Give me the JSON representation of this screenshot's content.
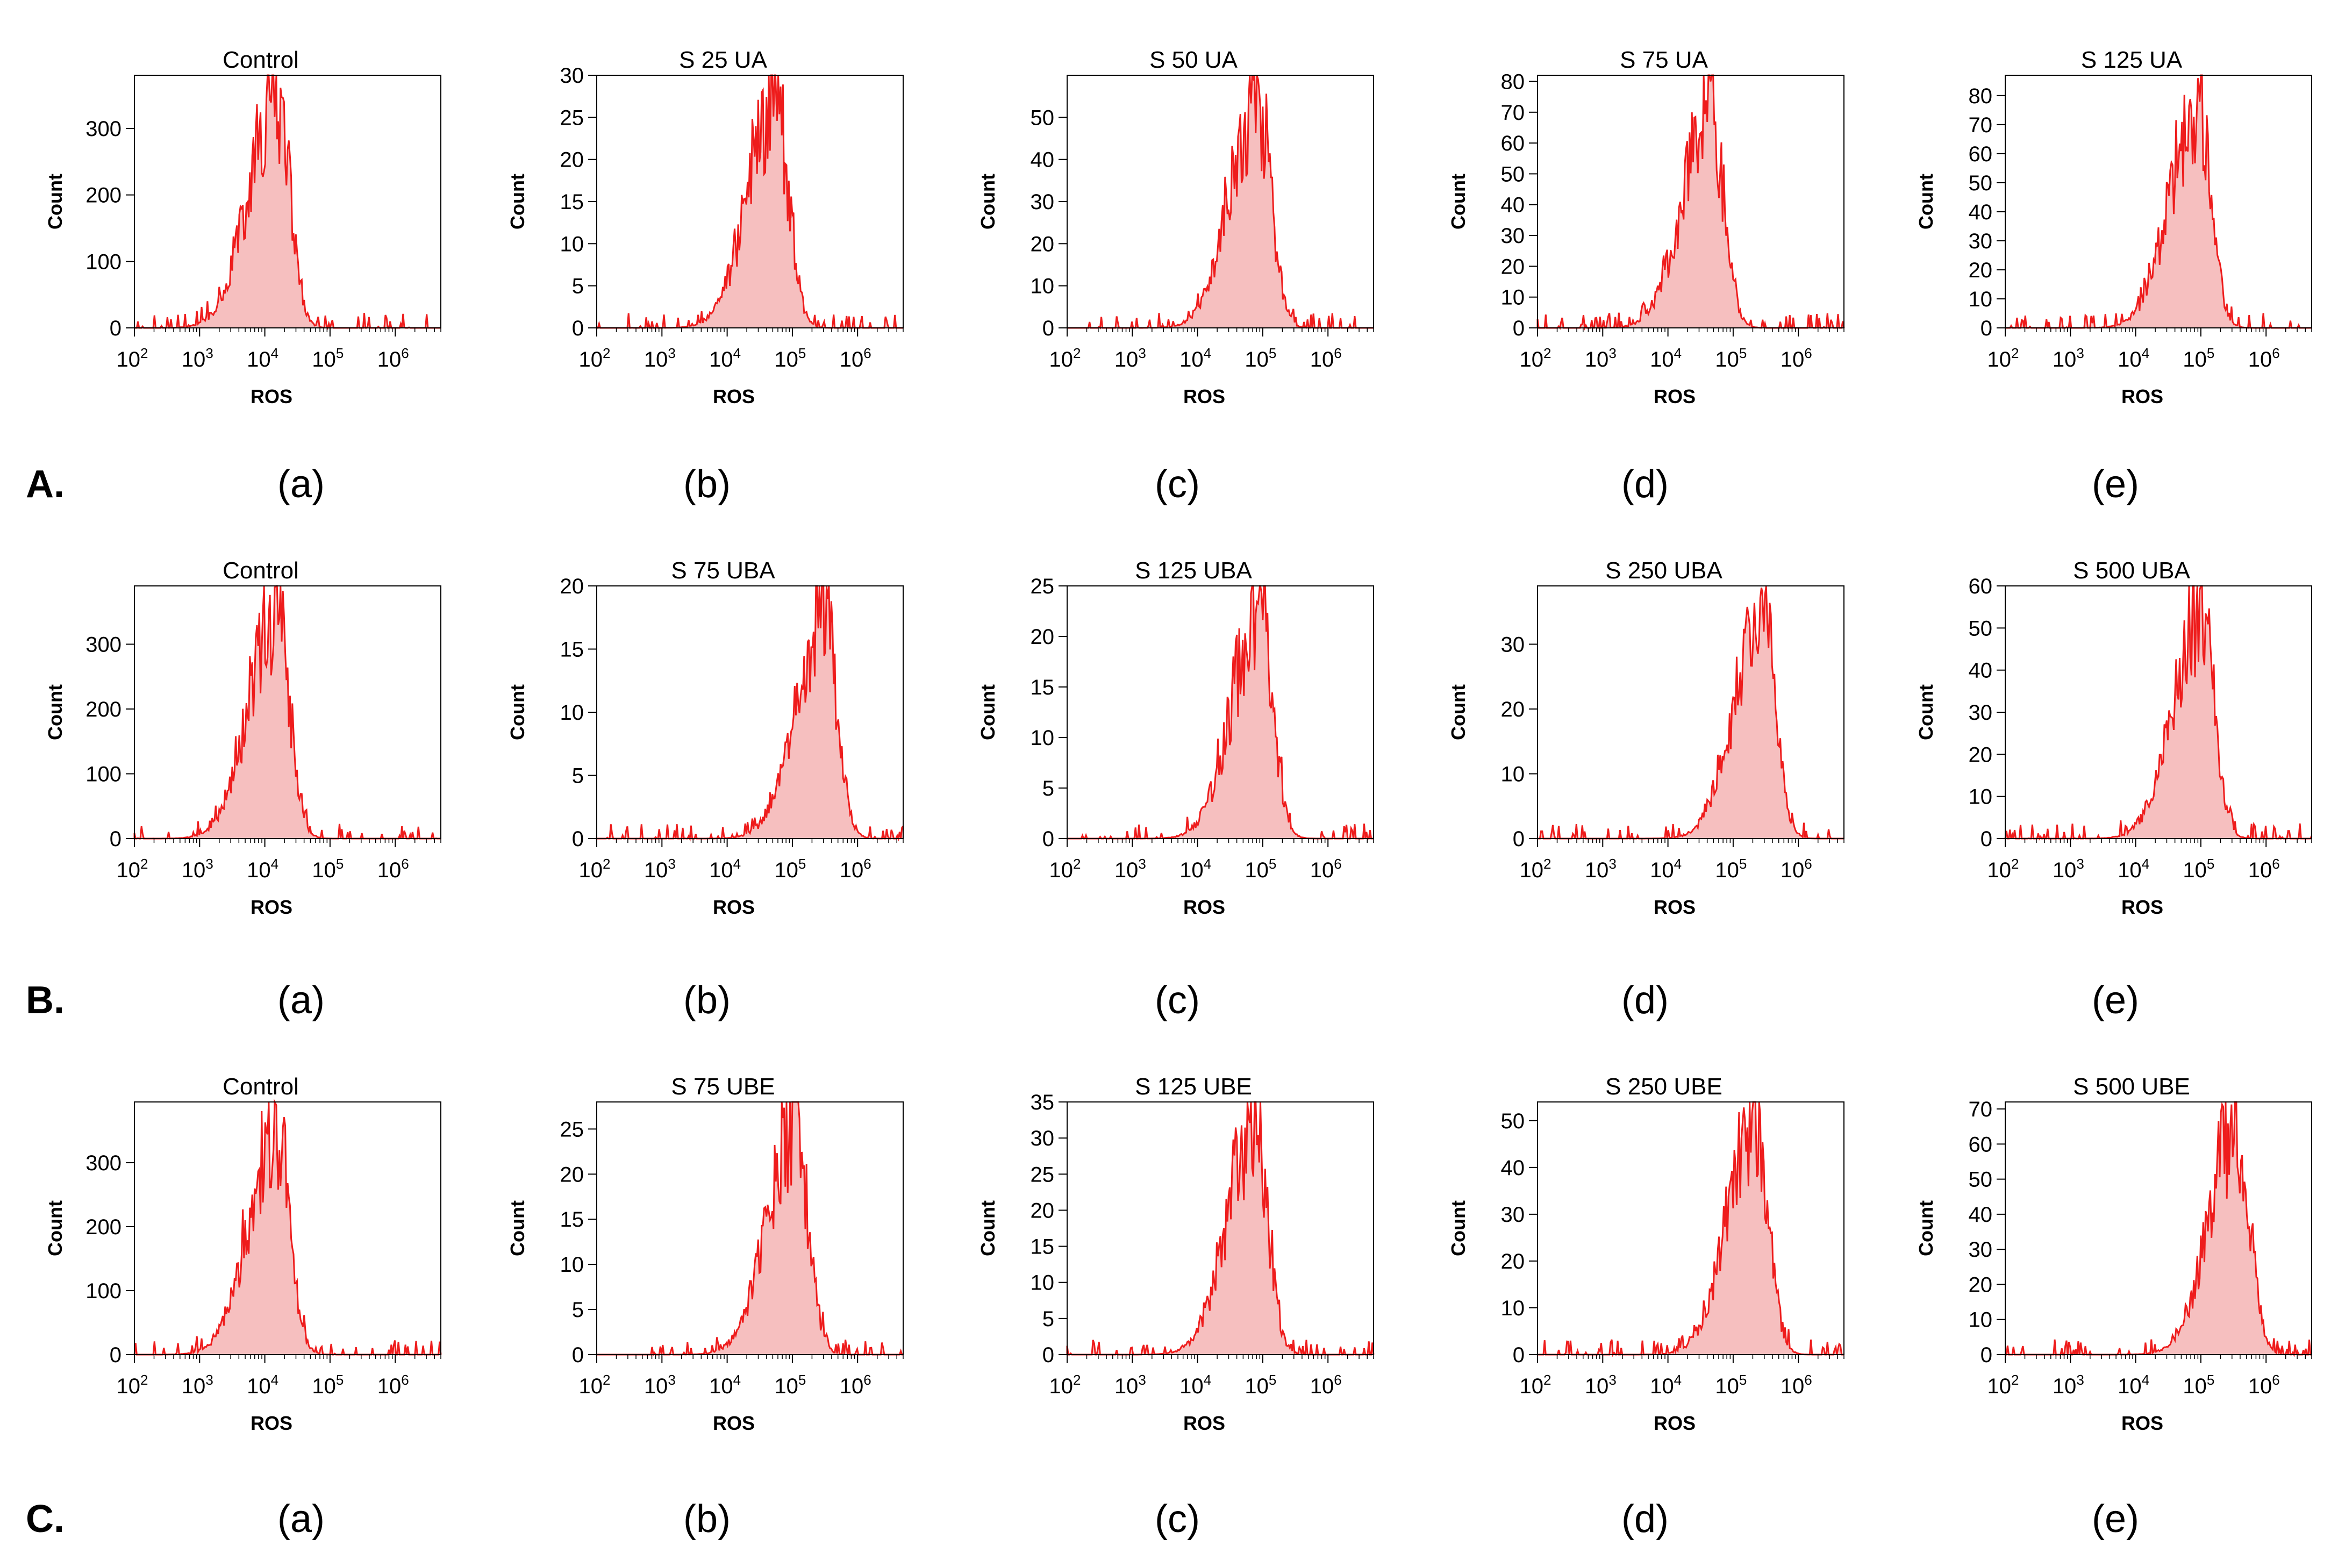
{
  "figure": {
    "x_tick_labels": [
      {
        "base": "10",
        "exp": "2"
      },
      {
        "base": "10",
        "exp": "3"
      },
      {
        "base": "10",
        "exp": "4"
      },
      {
        "base": "10",
        "exp": "5"
      },
      {
        "base": "10",
        "exp": "6"
      }
    ],
    "colors": {
      "line": "#ee1c1c",
      "fill": "#f6bfbf",
      "frame": "#000000"
    }
  },
  "rows": [
    {
      "label": "A.",
      "panel_labels": [
        "(a)",
        "(b)",
        "(c)",
        "(d)",
        "(e)"
      ]
    },
    {
      "label": "B.",
      "panel_labels": [
        "(a)",
        "(b)",
        "(c)",
        "(d)",
        "(e)"
      ]
    },
    {
      "label": "C.",
      "panel_labels": [
        "(a)",
        "(b)",
        "(c)",
        "(d)",
        "(e)"
      ]
    }
  ],
  "chart_data": [
    {
      "type": "area",
      "title": "Control",
      "xlabel": "ROS",
      "ylabel": "Count",
      "x_scale": "log10",
      "xlim": [
        100,
        5000000
      ],
      "ylim": [
        0,
        380
      ],
      "yticks": [
        0,
        100,
        200,
        300
      ],
      "peak_x": 15000,
      "peak_y": 390,
      "seed": 1
    },
    {
      "type": "area",
      "title": "S 25 UA",
      "xlabel": "ROS",
      "ylabel": "Count",
      "x_scale": "log10",
      "xlim": [
        100,
        5000000
      ],
      "ylim": [
        0,
        30
      ],
      "yticks": [
        0,
        5,
        10,
        15,
        20,
        25,
        30
      ],
      "peak_x": 55000,
      "peak_y": 30,
      "seed": 2
    },
    {
      "type": "area",
      "title": "S 50  UA",
      "xlabel": "ROS",
      "ylabel": "Count",
      "x_scale": "log10",
      "xlim": [
        100,
        5000000
      ],
      "ylim": [
        0,
        60
      ],
      "yticks": [
        0,
        10,
        20,
        30,
        40,
        50
      ],
      "peak_x": 85000,
      "peak_y": 59,
      "seed": 3
    },
    {
      "type": "area",
      "title": "S 75 UA",
      "xlabel": "ROS",
      "ylabel": "Count",
      "x_scale": "log10",
      "xlim": [
        100,
        5000000
      ],
      "ylim": [
        0,
        82
      ],
      "yticks": [
        0,
        10,
        20,
        30,
        40,
        50,
        60,
        70,
        80
      ],
      "peak_x": 45000,
      "peak_y": 80,
      "seed": 4
    },
    {
      "type": "area",
      "title": "S 125 UA",
      "xlabel": "ROS",
      "ylabel": "Count",
      "x_scale": "log10",
      "xlim": [
        100,
        5000000
      ],
      "ylim": [
        0,
        87
      ],
      "yticks": [
        0,
        10,
        20,
        30,
        40,
        50,
        60,
        70,
        80
      ],
      "peak_x": 90000,
      "peak_y": 86,
      "seed": 5
    },
    {
      "type": "area",
      "title": "Control",
      "xlabel": "ROS",
      "ylabel": "Count",
      "x_scale": "log10",
      "xlim": [
        100,
        5000000
      ],
      "ylim": [
        0,
        390
      ],
      "yticks": [
        0,
        100,
        200,
        300
      ],
      "peak_x": 15000,
      "peak_y": 390,
      "seed": 6
    },
    {
      "type": "area",
      "title": "S 75  UBA",
      "xlabel": "ROS",
      "ylabel": "Count",
      "x_scale": "log10",
      "xlim": [
        100,
        5000000
      ],
      "ylim": [
        0,
        20
      ],
      "yticks": [
        0,
        5,
        10,
        15,
        20
      ],
      "peak_x": 300000,
      "peak_y": 20,
      "seed": 7
    },
    {
      "type": "area",
      "title": "S 125  UBA",
      "xlabel": "ROS",
      "ylabel": "Count",
      "x_scale": "log10",
      "xlim": [
        100,
        5000000
      ],
      "ylim": [
        0,
        25
      ],
      "yticks": [
        0,
        5,
        10,
        15,
        20,
        25
      ],
      "peak_x": 90000,
      "peak_y": 25,
      "seed": 8
    },
    {
      "type": "area",
      "title": "S 250 UBA",
      "xlabel": "ROS",
      "ylabel": "Count",
      "x_scale": "log10",
      "xlim": [
        100,
        5000000
      ],
      "ylim": [
        0,
        39
      ],
      "yticks": [
        0,
        10,
        20,
        30
      ],
      "peak_x": 280000,
      "peak_y": 38,
      "seed": 9
    },
    {
      "type": "area",
      "title": "S 500 UBA",
      "xlabel": "ROS",
      "ylabel": "Count",
      "x_scale": "log10",
      "xlim": [
        100,
        5000000
      ],
      "ylim": [
        0,
        60
      ],
      "yticks": [
        0,
        10,
        20,
        30,
        40,
        50,
        60
      ],
      "peak_x": 100000,
      "peak_y": 60,
      "seed": 10
    },
    {
      "type": "area",
      "title": "Control",
      "xlabel": "ROS",
      "ylabel": "Count",
      "x_scale": "log10",
      "xlim": [
        100,
        5000000
      ],
      "ylim": [
        0,
        395
      ],
      "yticks": [
        0,
        100,
        200,
        300
      ],
      "peak_x": 15000,
      "peak_y": 390,
      "seed": 11
    },
    {
      "type": "area",
      "title": "S 75 UBE",
      "xlabel": "ROS",
      "ylabel": "Count",
      "x_scale": "log10",
      "xlim": [
        100,
        5000000
      ],
      "ylim": [
        0,
        28
      ],
      "yticks": [
        0,
        5,
        10,
        15,
        20,
        25
      ],
      "peak_x": 110000,
      "peak_y": 28,
      "seed": 12
    },
    {
      "type": "area",
      "title": "S 125  UBE",
      "xlabel": "ROS",
      "ylabel": "Count",
      "x_scale": "log10",
      "xlim": [
        100,
        5000000
      ],
      "ylim": [
        0,
        35
      ],
      "yticks": [
        0,
        5,
        10,
        15,
        20,
        25,
        30,
        35
      ],
      "peak_x": 75000,
      "peak_y": 35,
      "seed": 13
    },
    {
      "type": "area",
      "title": "S 250 UBE",
      "xlabel": "ROS",
      "ylabel": "Count",
      "x_scale": "log10",
      "xlim": [
        100,
        5000000
      ],
      "ylim": [
        0,
        54
      ],
      "yticks": [
        0,
        10,
        20,
        30,
        40,
        50
      ],
      "peak_x": 220000,
      "peak_y": 54,
      "seed": 14
    },
    {
      "type": "area",
      "title": "S 500 UBE",
      "xlabel": "ROS",
      "ylabel": "Count",
      "x_scale": "log10",
      "xlim": [
        100,
        5000000
      ],
      "ylim": [
        0,
        72
      ],
      "yticks": [
        0,
        10,
        20,
        30,
        40,
        50,
        60,
        70
      ],
      "peak_x": 350000,
      "peak_y": 72,
      "seed": 15
    }
  ]
}
